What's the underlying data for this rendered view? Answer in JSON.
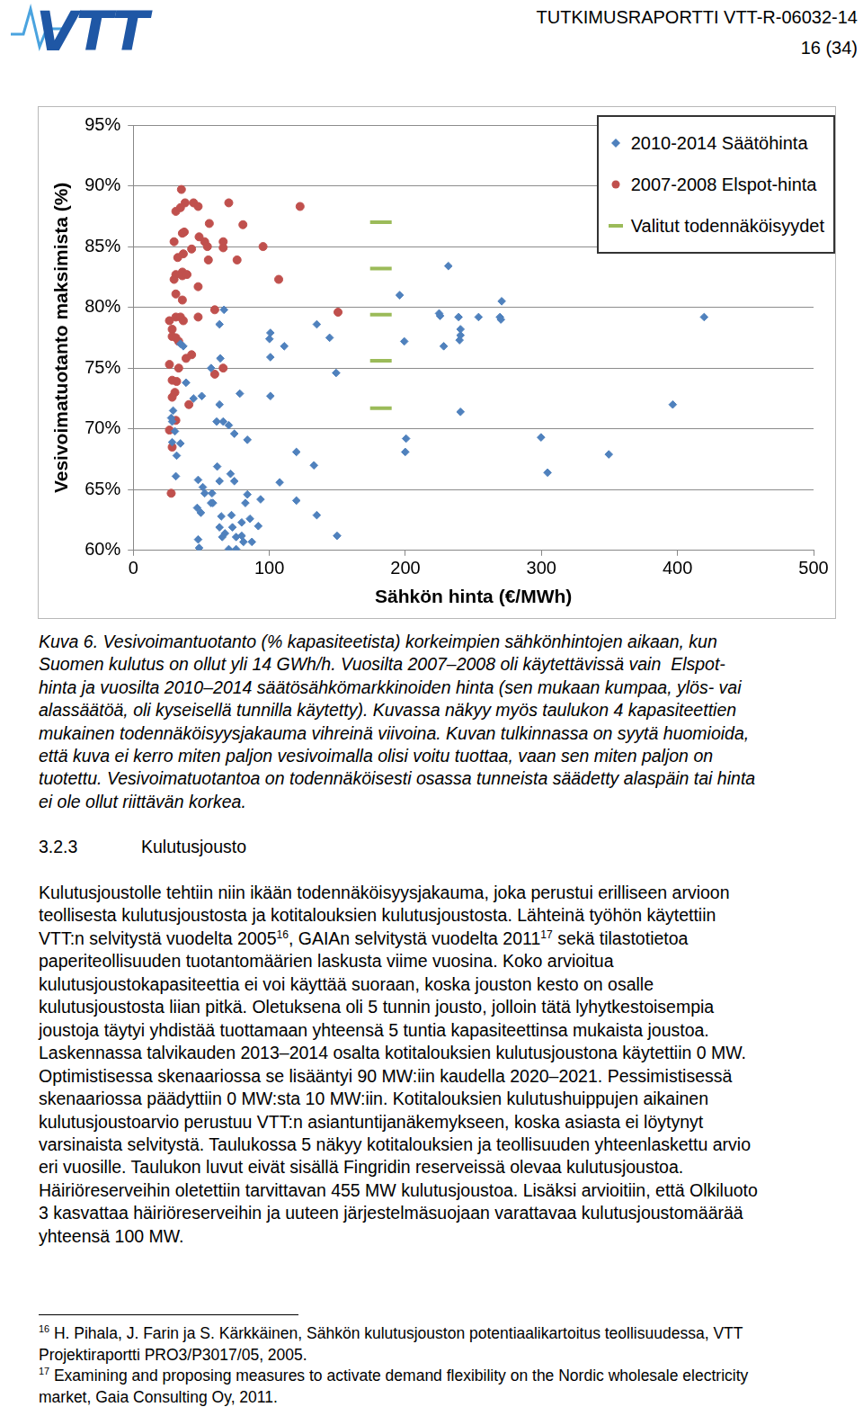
{
  "header": {
    "logo": "VTT",
    "report": "TUTKIMUSRAPORTTI VTT-R-06032-14",
    "page": "16 (34)"
  },
  "chart_data": {
    "type": "scatter",
    "x_label": "Sähkön hinta (€/MWh)",
    "y_label": "Vesivoimatuotanto maksimista (%)",
    "xlim": [
      0,
      500
    ],
    "xticks": [
      0,
      100,
      200,
      300,
      400,
      500
    ],
    "ylim": [
      60,
      95
    ],
    "yticks": [
      {
        "value": 60,
        "label": "60%"
      },
      {
        "value": 65,
        "label": "65%"
      },
      {
        "value": 70,
        "label": "70%"
      },
      {
        "value": 75,
        "label": "75%"
      },
      {
        "value": 80,
        "label": "80%"
      },
      {
        "value": 85,
        "label": "85%"
      },
      {
        "value": 90,
        "label": "90%"
      },
      {
        "value": 95,
        "label": "95%"
      }
    ],
    "grid": true,
    "legend": "upper right",
    "series": [
      {
        "name": "2010-2014 Säätöhinta",
        "color": "#4f81bd",
        "marker": "diamond",
        "x": [
          27.9,
          28.6,
          28.6,
          30.6,
          31.9,
          34.7,
          31.3,
          29.3,
          34.7,
          38.8,
          36.8,
          47.7,
          51.1,
          47.0,
          49.7,
          47.7,
          48.4,
          44.3,
          50.4,
          57.2,
          66.7,
          63.4,
          64.0,
          63.4,
          61.3,
          66.1,
          70.2,
          74.3,
          83.9,
          78.3,
          61.7,
          57.9,
          58.6,
          63.4,
          71.5,
          74.3,
          64.7,
          72.2,
          63.4,
          67.4,
          72.9,
          75.6,
          79.7,
          81.0,
          87.2,
          70.2,
          75.6,
          65.4,
          82.4,
          83.9,
          79.7,
          85.8,
          91.9,
          93.6,
          57.2,
          52.5,
          100.8,
          100.1,
          111.0,
          100.8,
          100.8,
          107.6,
          119.9,
          119.9,
          132.8,
          134.9,
          134.9,
          144.3,
          149.1,
          149.8,
          195.8,
          199.2,
          200.5,
          199.9,
          224.8,
          225.5,
          228.2,
          231.6,
          239.1,
          240.5,
          240.5,
          239.8,
          240.5,
          253.8,
          269.5,
          270.2,
          270.8,
          299.7,
          304.5,
          349.5,
          396.5,
          419.6
        ],
        "values": [
          70.9,
          70.6,
          68.9,
          69.8,
          67.8,
          68.8,
          66.1,
          71.5,
          77.0,
          73.8,
          76.8,
          65.8,
          65.2,
          63.5,
          63.1,
          60.9,
          60.2,
          72.5,
          72.7,
          75.0,
          79.8,
          78.6,
          75.8,
          72.0,
          70.6,
          70.6,
          70.3,
          69.6,
          69.1,
          72.9,
          66.9,
          64.7,
          63.9,
          65.7,
          66.3,
          65.7,
          62.8,
          62.9,
          61.9,
          61.4,
          61.9,
          61.1,
          61.2,
          60.7,
          60.7,
          60.1,
          60.1,
          61.1,
          63.9,
          64.6,
          62.3,
          62.6,
          62.0,
          64.2,
          63.9,
          64.7,
          77.9,
          77.4,
          76.8,
          75.9,
          72.7,
          65.6,
          68.1,
          64.1,
          67.0,
          62.9,
          78.6,
          77.5,
          74.6,
          61.2,
          81.0,
          77.2,
          69.2,
          68.1,
          79.5,
          79.3,
          76.8,
          83.4,
          79.2,
          78.2,
          77.7,
          77.3,
          71.4,
          79.2,
          79.2,
          79.0,
          80.5,
          69.3,
          66.4,
          67.9,
          72.0,
          79.2
        ]
      },
      {
        "name": "2007-2008 Elspot-hinta",
        "color": "#c0504d",
        "marker": "circle",
        "x": [
          35.4,
          38.1,
          44.3,
          47.7,
          31.3,
          34.7,
          70.2,
          122.6,
          55.9,
          80.6,
          37.5,
          36.1,
          30.0,
          48.4,
          52.5,
          66.1,
          95.4,
          42.9,
          54.5,
          66.1,
          55.2,
          32.7,
          36.8,
          36.1,
          31.3,
          36.1,
          39.5,
          30.0,
          76.3,
          106.9,
          47.7,
          31.3,
          36.1,
          59.9,
          31.3,
          34.7,
          47.7,
          26.6,
          36.8,
          28.6,
          28.6,
          31.3,
          33.4,
          42.9,
          26.6,
          33.4,
          38.8,
          66.1,
          59.9,
          28.6,
          31.9,
          30.6,
          28.6,
          150.5,
          40.9,
          26.6,
          28.6,
          27.9,
          31.3
        ],
        "values": [
          89.7,
          88.6,
          88.6,
          88.3,
          87.9,
          88.2,
          88.6,
          88.3,
          86.9,
          86.8,
          86.2,
          86.1,
          85.4,
          85.8,
          85.4,
          85.4,
          85.0,
          84.8,
          85.0,
          84.9,
          83.9,
          84.1,
          84.4,
          82.9,
          82.7,
          82.6,
          82.7,
          82.3,
          83.9,
          82.3,
          81.7,
          81.1,
          80.6,
          79.8,
          79.2,
          79.2,
          79.2,
          78.9,
          78.9,
          78.2,
          77.6,
          77.5,
          77.2,
          76.1,
          75.3,
          75.0,
          75.8,
          75.0,
          74.5,
          74.0,
          73.9,
          73.0,
          72.6,
          79.6,
          72.0,
          69.9,
          68.5,
          64.7,
          70.7
        ]
      },
      {
        "name": "Valitut todennäköisyydet",
        "color": "#9bbb59",
        "marker": "line",
        "x": [
          182,
          182,
          182,
          182,
          182
        ],
        "values": [
          87.0,
          83.2,
          79.4,
          75.6,
          71.7
        ]
      }
    ]
  },
  "caption": [
    [
      {
        "text": "Kuva 6. Vesivoimantuotanto (% kapasiteetista) korkeimpien sähkönhintojen aikaan, kun"
      }
    ],
    [
      {
        "text": "Suomen kulutus on ollut yli 14 GWh/h. Vuosilta 2007–2008 oli käytettävissä vain  Elspot-"
      }
    ],
    [
      {
        "text": "hinta ja vuosilta 2010–2014 säätösähkömarkkinoiden hinta (sen mukaan kumpaa, ylös- vai"
      }
    ],
    [
      {
        "text": "alassäätöä, oli kyseisellä tunnilla käytetty). Kuvassa näkyy myös taulukon 4 kapasiteettien"
      }
    ],
    [
      {
        "text": "mukainen todennäköisyysjakauma vihreinä viivoina. Kuvan tulkinnassa on syytä huomioida,"
      }
    ],
    [
      {
        "text": "että kuva ei kerro miten paljon vesivoimalla olisi voitu tuottaa, vaan sen miten paljon on"
      }
    ],
    [
      {
        "text": "tuotettu. Vesivoimatuotantoa on todennäköisesti osassa tunneista säädetty alaspäin tai hinta"
      }
    ],
    [
      {
        "text": "ei ole ollut riittävän korkea."
      }
    ]
  ],
  "section": {
    "number": "3.2.3",
    "title": "Kulutusjousto"
  },
  "paragraph": [
    [
      {
        "text": "Kulutusjoustolle tehtiin niin ikään todennäköisyysjakauma, joka perustui erilliseen arvioon"
      }
    ],
    [
      {
        "text": "teollisesta kulutusjoustosta ja kotitalouksien kulutusjoustosta. Lähteinä työhön käytettiin"
      }
    ],
    [
      {
        "text": "VTT:n selvitystä vuodelta 2005"
      },
      {
        "sup": "16"
      },
      {
        "text": ", GAIAn selvitystä vuodelta 2011"
      },
      {
        "sup": "17"
      },
      {
        "text": " sekä tilastotietoa"
      }
    ],
    [
      {
        "text": "paperiteollisuuden tuotantomäärien laskusta viime vuosina. Koko arvioitua"
      }
    ],
    [
      {
        "text": "kulutusjoustokapasiteettia ei voi käyttää suoraan, koska jouston kesto on osalle"
      }
    ],
    [
      {
        "text": "kulutusjoustosta liian pitkä. Oletuksena oli 5 tunnin jousto, jolloin tätä lyhytkestoisempia"
      }
    ],
    [
      {
        "text": "joustoja täytyi yhdistää tuottamaan yhteensä 5 tuntia kapasiteettinsa mukaista joustoa."
      }
    ],
    [
      {
        "text": "Laskennassa talvikauden 2013–2014 osalta kotitalouksien kulutusjoustona käytettiin 0 MW."
      }
    ],
    [
      {
        "text": "Optimistisessa skenaariossa se lisääntyi 90 MW:iin kaudella 2020–2021. Pessimistisessä"
      }
    ],
    [
      {
        "text": "skenaariossa päädyttiin 0 MW:sta 10 MW:iin. Kotitalouksien kulutushuippujen aikainen"
      }
    ],
    [
      {
        "text": "kulutusjoustoarvio perustuu VTT:n asiantuntijanäkemykseen, koska asiasta ei löytynyt"
      }
    ],
    [
      {
        "text": "varsinaista selvitystä. Taulukossa 5 näkyy kotitalouksien ja teollisuuden yhteenlaskettu arvio"
      }
    ],
    [
      {
        "text": "eri vuosille. Taulukon luvut eivät sisällä Fingridin reserveissä olevaa kulutusjoustoa."
      }
    ],
    [
      {
        "text": "Häiriöreserveihin oletettiin tarvittavan 455 MW kulutusjoustoa. Lisäksi arvioitiin, että Olkiluoto"
      }
    ],
    [
      {
        "text": "3 kasvattaa häiriöreserveihin ja uuteen järjestelmäsuojaan varattavaa kulutusjoustomäärää"
      }
    ],
    [
      {
        "text": "yhteensä 100 MW."
      }
    ]
  ],
  "footnotes": [
    [
      {
        "sup": "16"
      },
      {
        "text": " H. Pihala, J. Farin ja S. Kärkkäinen, Sähkön kulutusjouston potentiaalikartoitus teollisuudessa, VTT"
      }
    ],
    [
      {
        "text": "Projektiraportti PRO3/P3017/05, 2005."
      }
    ],
    [
      {
        "sup": "17"
      },
      {
        "text": " Examining and proposing measures to activate demand flexibility on the Nordic wholesale electricity"
      }
    ],
    [
      {
        "text": "market, Gaia Consulting Oy, 2011."
      }
    ]
  ]
}
